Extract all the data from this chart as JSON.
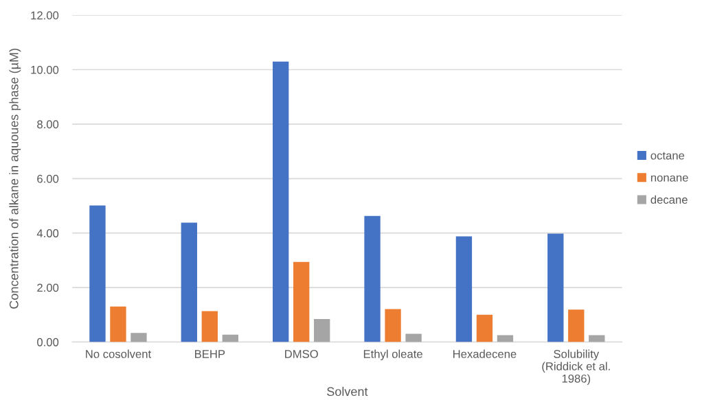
{
  "chart_data": {
    "type": "bar",
    "xlabel": "Solvent",
    "ylabel": "Concentration of alkane in aquoues phase (µM)",
    "categories": [
      "No cosolvent",
      "BEHP",
      "DMSO",
      "Ethyl oleate",
      "Hexadecene",
      "Solubility\n(Riddick et al.\n1986)"
    ],
    "series": [
      {
        "name": "octane",
        "color": "#4472c4",
        "values": [
          5.01,
          4.38,
          10.3,
          4.63,
          3.88,
          3.98
        ]
      },
      {
        "name": "nonane",
        "color": "#ed7d31",
        "values": [
          1.3,
          1.13,
          2.94,
          1.21,
          1.0,
          1.19
        ]
      },
      {
        "name": "decane",
        "color": "#a5a5a5",
        "values": [
          0.33,
          0.27,
          0.84,
          0.3,
          0.25,
          0.25
        ]
      }
    ],
    "ylim": [
      0,
      12
    ],
    "yticks": [
      {
        "value": 0,
        "label": "0.00"
      },
      {
        "value": 2,
        "label": "2.00"
      },
      {
        "value": 4,
        "label": "4.00"
      },
      {
        "value": 6,
        "label": "6.00"
      },
      {
        "value": 8,
        "label": "8.00"
      },
      {
        "value": 10,
        "label": "10.00"
      },
      {
        "value": 12,
        "label": "12.00"
      }
    ],
    "grid": "y",
    "legend": "right"
  }
}
